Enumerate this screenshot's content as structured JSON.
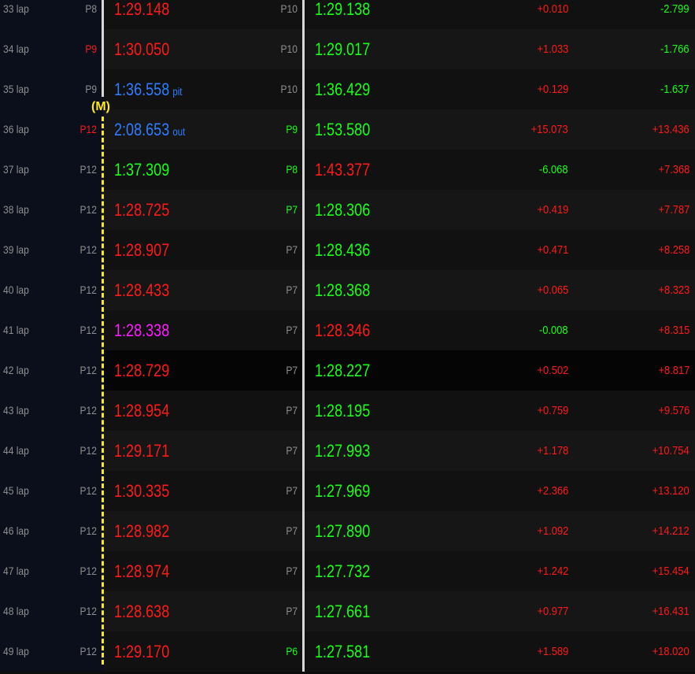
{
  "marker": "(M)",
  "colors": {
    "red": "#ff1a1a",
    "green": "#18ff18",
    "blue": "#2f7dff",
    "magenta": "#ff1aff",
    "grey": "#8f8f8f",
    "marker_yellow": "#ffe81a",
    "separator": "#d8d8d8"
  },
  "laps": [
    {
      "lap": "33 lap",
      "pos1": "P8",
      "pos1_color": "grey",
      "time1": "1:29.148",
      "time1_color": "red",
      "time1_note": "",
      "pos2": "P10",
      "pos2_color": "grey",
      "time2": "1:29.138",
      "time2_color": "green",
      "diff": "+0.010",
      "diff_color": "red",
      "cum": "-2.799",
      "cum_color": "green",
      "bg": "base"
    },
    {
      "lap": "34 lap",
      "pos1": "P9",
      "pos1_color": "red",
      "time1": "1:30.050",
      "time1_color": "red",
      "time1_note": "",
      "pos2": "P10",
      "pos2_color": "grey",
      "time2": "1:29.017",
      "time2_color": "green",
      "diff": "+1.033",
      "diff_color": "red",
      "cum": "-1.766",
      "cum_color": "green",
      "bg": "alt"
    },
    {
      "lap": "35 lap",
      "pos1": "P9",
      "pos1_color": "grey",
      "time1": "1:36.558",
      "time1_color": "blue",
      "time1_note": "pit",
      "pos2": "P10",
      "pos2_color": "grey",
      "time2": "1:36.429",
      "time2_color": "green",
      "diff": "+0.129",
      "diff_color": "red",
      "cum": "-1.637",
      "cum_color": "green",
      "bg": "base"
    },
    {
      "lap": "36 lap",
      "pos1": "P12",
      "pos1_color": "red",
      "time1": "2:08.653",
      "time1_color": "blue",
      "time1_note": "out",
      "pos2": "P9",
      "pos2_color": "green",
      "time2": "1:53.580",
      "time2_color": "green",
      "diff": "+15.073",
      "diff_color": "red",
      "cum": "+13.436",
      "cum_color": "red",
      "bg": "alt"
    },
    {
      "lap": "37 lap",
      "pos1": "P12",
      "pos1_color": "grey",
      "time1": "1:37.309",
      "time1_color": "green",
      "time1_note": "",
      "pos2": "P8",
      "pos2_color": "green",
      "time2": "1:43.377",
      "time2_color": "red",
      "diff": "-6.068",
      "diff_color": "green",
      "cum": "+7.368",
      "cum_color": "red",
      "bg": "base"
    },
    {
      "lap": "38 lap",
      "pos1": "P12",
      "pos1_color": "grey",
      "time1": "1:28.725",
      "time1_color": "red",
      "time1_note": "",
      "pos2": "P7",
      "pos2_color": "green",
      "time2": "1:28.306",
      "time2_color": "green",
      "diff": "+0.419",
      "diff_color": "red",
      "cum": "+7.787",
      "cum_color": "red",
      "bg": "alt"
    },
    {
      "lap": "39 lap",
      "pos1": "P12",
      "pos1_color": "grey",
      "time1": "1:28.907",
      "time1_color": "red",
      "time1_note": "",
      "pos2": "P7",
      "pos2_color": "grey",
      "time2": "1:28.436",
      "time2_color": "green",
      "diff": "+0.471",
      "diff_color": "red",
      "cum": "+8.258",
      "cum_color": "red",
      "bg": "base"
    },
    {
      "lap": "40 lap",
      "pos1": "P12",
      "pos1_color": "grey",
      "time1": "1:28.433",
      "time1_color": "red",
      "time1_note": "",
      "pos2": "P7",
      "pos2_color": "grey",
      "time2": "1:28.368",
      "time2_color": "green",
      "diff": "+0.065",
      "diff_color": "red",
      "cum": "+8.323",
      "cum_color": "red",
      "bg": "alt"
    },
    {
      "lap": "41 lap",
      "pos1": "P12",
      "pos1_color": "grey",
      "time1": "1:28.338",
      "time1_color": "magenta",
      "time1_note": "",
      "pos2": "P7",
      "pos2_color": "grey",
      "time2": "1:28.346",
      "time2_color": "red",
      "diff": "-0.008",
      "diff_color": "green",
      "cum": "+8.315",
      "cum_color": "red",
      "bg": "base"
    },
    {
      "lap": "42 lap",
      "pos1": "P12",
      "pos1_color": "grey",
      "time1": "1:28.729",
      "time1_color": "red",
      "time1_note": "",
      "pos2": "P7",
      "pos2_color": "grey",
      "time2": "1:28.227",
      "time2_color": "green",
      "diff": "+0.502",
      "diff_color": "red",
      "cum": "+8.817",
      "cum_color": "red",
      "bg": "dark"
    },
    {
      "lap": "43 lap",
      "pos1": "P12",
      "pos1_color": "grey",
      "time1": "1:28.954",
      "time1_color": "red",
      "time1_note": "",
      "pos2": "P7",
      "pos2_color": "grey",
      "time2": "1:28.195",
      "time2_color": "green",
      "diff": "+0.759",
      "diff_color": "red",
      "cum": "+9.576",
      "cum_color": "red",
      "bg": "base"
    },
    {
      "lap": "44 lap",
      "pos1": "P12",
      "pos1_color": "grey",
      "time1": "1:29.171",
      "time1_color": "red",
      "time1_note": "",
      "pos2": "P7",
      "pos2_color": "grey",
      "time2": "1:27.993",
      "time2_color": "green",
      "diff": "+1.178",
      "diff_color": "red",
      "cum": "+10.754",
      "cum_color": "red",
      "bg": "alt"
    },
    {
      "lap": "45 lap",
      "pos1": "P12",
      "pos1_color": "grey",
      "time1": "1:30.335",
      "time1_color": "red",
      "time1_note": "",
      "pos2": "P7",
      "pos2_color": "grey",
      "time2": "1:27.969",
      "time2_color": "green",
      "diff": "+2.366",
      "diff_color": "red",
      "cum": "+13.120",
      "cum_color": "red",
      "bg": "base"
    },
    {
      "lap": "46 lap",
      "pos1": "P12",
      "pos1_color": "grey",
      "time1": "1:28.982",
      "time1_color": "red",
      "time1_note": "",
      "pos2": "P7",
      "pos2_color": "grey",
      "time2": "1:27.890",
      "time2_color": "green",
      "diff": "+1.092",
      "diff_color": "red",
      "cum": "+14.212",
      "cum_color": "red",
      "bg": "alt"
    },
    {
      "lap": "47 lap",
      "pos1": "P12",
      "pos1_color": "grey",
      "time1": "1:28.974",
      "time1_color": "red",
      "time1_note": "",
      "pos2": "P7",
      "pos2_color": "grey",
      "time2": "1:27.732",
      "time2_color": "green",
      "diff": "+1.242",
      "diff_color": "red",
      "cum": "+15.454",
      "cum_color": "red",
      "bg": "base"
    },
    {
      "lap": "48 lap",
      "pos1": "P12",
      "pos1_color": "grey",
      "time1": "1:28.638",
      "time1_color": "red",
      "time1_note": "",
      "pos2": "P7",
      "pos2_color": "grey",
      "time2": "1:27.661",
      "time2_color": "green",
      "diff": "+0.977",
      "diff_color": "red",
      "cum": "+16.431",
      "cum_color": "red",
      "bg": "alt"
    },
    {
      "lap": "49 lap",
      "pos1": "P12",
      "pos1_color": "grey",
      "time1": "1:29.170",
      "time1_color": "red",
      "time1_note": "",
      "pos2": "P6",
      "pos2_color": "green",
      "time2": "1:27.581",
      "time2_color": "green",
      "diff": "+1.589",
      "diff_color": "red",
      "cum": "+18.020",
      "cum_color": "red",
      "bg": "base"
    }
  ]
}
